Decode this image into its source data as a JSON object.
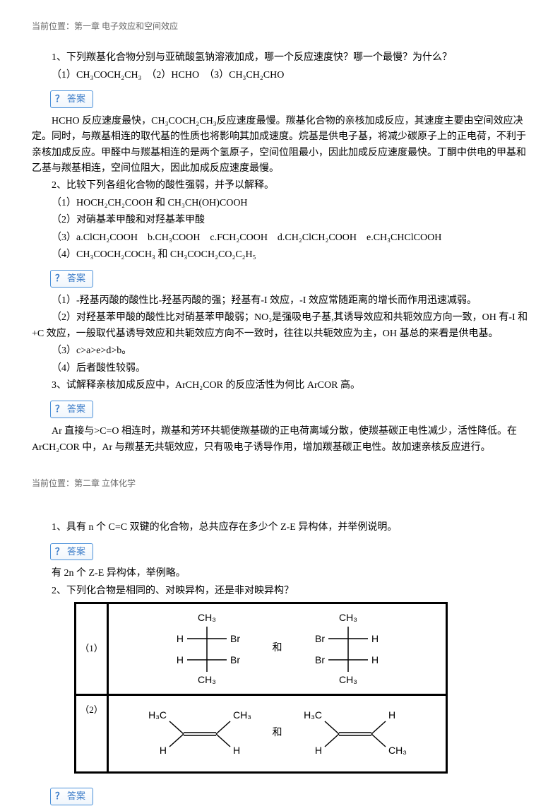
{
  "chapter1": {
    "breadcrumb": "当前位置：第一章 电子效应和空间效应",
    "q1": {
      "text": "1、下列羰基化合物分别与亚硫酸氢钠溶液加成，哪一个反应速度快？哪一个最慢？为什么？",
      "sub": "（1）CH₃COCH₂CH₃　（2）HCHO　（3）CH₃CH₂CHO",
      "answer": "HCHO 反应速度最快，CH₃COCH₂CH₃反应速度最慢。羰基化合物的亲核加成反应，其速度主要由空间效应决定。同时，与羰基相连的取代基的性质也将影响其加成速度。烷基是供电子基，将减少碳原子上的正电荷，不利于亲核加成反应。甲醛中与羰基相连的是两个氢原子，空间位阻最小，因此加成反应速度最快。丁酮中供电的甲基和乙基与羰基相连，空间位阻大，因此加成反应速度最慢。"
    },
    "q2": {
      "text": "2、比较下列各组化合物的酸性强弱，并予以解释。",
      "sub1": "（1）HOCH₂CH₂COOH 和 CH₃CH(OH)COOH",
      "sub2": "（2）对硝基苯甲酸和对羟基苯甲酸",
      "sub3": "（3）a.ClCH₂COOH　b.CH₃COOH　c.FCH₂COOH　d.CH₂ClCH₂COOH　e.CH₃CHClCOOH",
      "sub4": "（4）CH₃COCH₂COCH₃ 和 CH₃COCH₂CO₂C₂H₅",
      "ans1": "（1）-羟基丙酸的酸性比-羟基丙酸的强；羟基有-I 效应，-I 效应常随距离的增长而作用迅速减弱。",
      "ans2": "（2）对羟基苯甲酸的酸性比对硝基苯甲酸弱；NO₂是强吸电子基,其诱导效应和共轭效应方向一致，OH 有-I 和+C 效应，一般取代基诱导效应和共轭效应方向不一致时，往往以共轭效应为主，OH 基总的来看是供电基。",
      "ans3": "（3）c>a>e>d>b。",
      "ans4": "（4）后者酸性较弱。"
    },
    "q3": {
      "text": "3、试解释亲核加成反应中，ArCH₂COR 的反应活性为何比 ArCOR 高。",
      "answer": "Ar 直接与>C=O 相连时，羰基和芳环共轭使羰基碳的正电荷离域分散，使羰基碳正电性减少，活性降低。在ArCH₂COR 中，Ar 与羰基无共轭效应，只有吸电子诱导作用，增加羰基碳正电性。故加速亲核反应进行。"
    }
  },
  "chapter2": {
    "breadcrumb": "当前位置：第二章 立体化学",
    "q1": {
      "text": "1、具有 n 个 C=C 双键的化合物，总共应存在多少个 Z-E 异构体，并举例说明。",
      "answer": "有 2n 个 Z-E 异构体，举例略。"
    },
    "q2": {
      "text": "2、下列化合物是相同的、对映异构，还是非对映异构？",
      "row1_label": "（1）",
      "row2_label": "（2）",
      "and": "和"
    }
  },
  "ui": {
    "answer_label": "答案",
    "qmark": "？"
  },
  "style": {
    "text_color": "#000000",
    "breadcrumb_color": "#666666",
    "button_border": "#4a90d9",
    "button_text": "#3a7bc8",
    "bg": "#ffffff",
    "font_size_body": 14,
    "font_size_breadcrumb": 12,
    "table_border": "#000000",
    "table_border_width": 3
  },
  "diagrams": {
    "row1": {
      "left": {
        "top": "CH₃",
        "c1_left": "H",
        "c1_right": "Br",
        "c2_left": "H",
        "c2_right": "Br",
        "bottom": "CH₃"
      },
      "right": {
        "top": "CH₃",
        "c1_left": "Br",
        "c1_right": "H",
        "c2_left": "Br",
        "c2_right": "H",
        "bottom": "CH₃"
      }
    },
    "row2": {
      "left": {
        "tl": "H₃C",
        "bl": "H",
        "tr": "CH₃",
        "br": "H"
      },
      "right": {
        "tl": "H₃C",
        "bl": "H",
        "tr": "H",
        "br": "CH₃"
      }
    }
  }
}
